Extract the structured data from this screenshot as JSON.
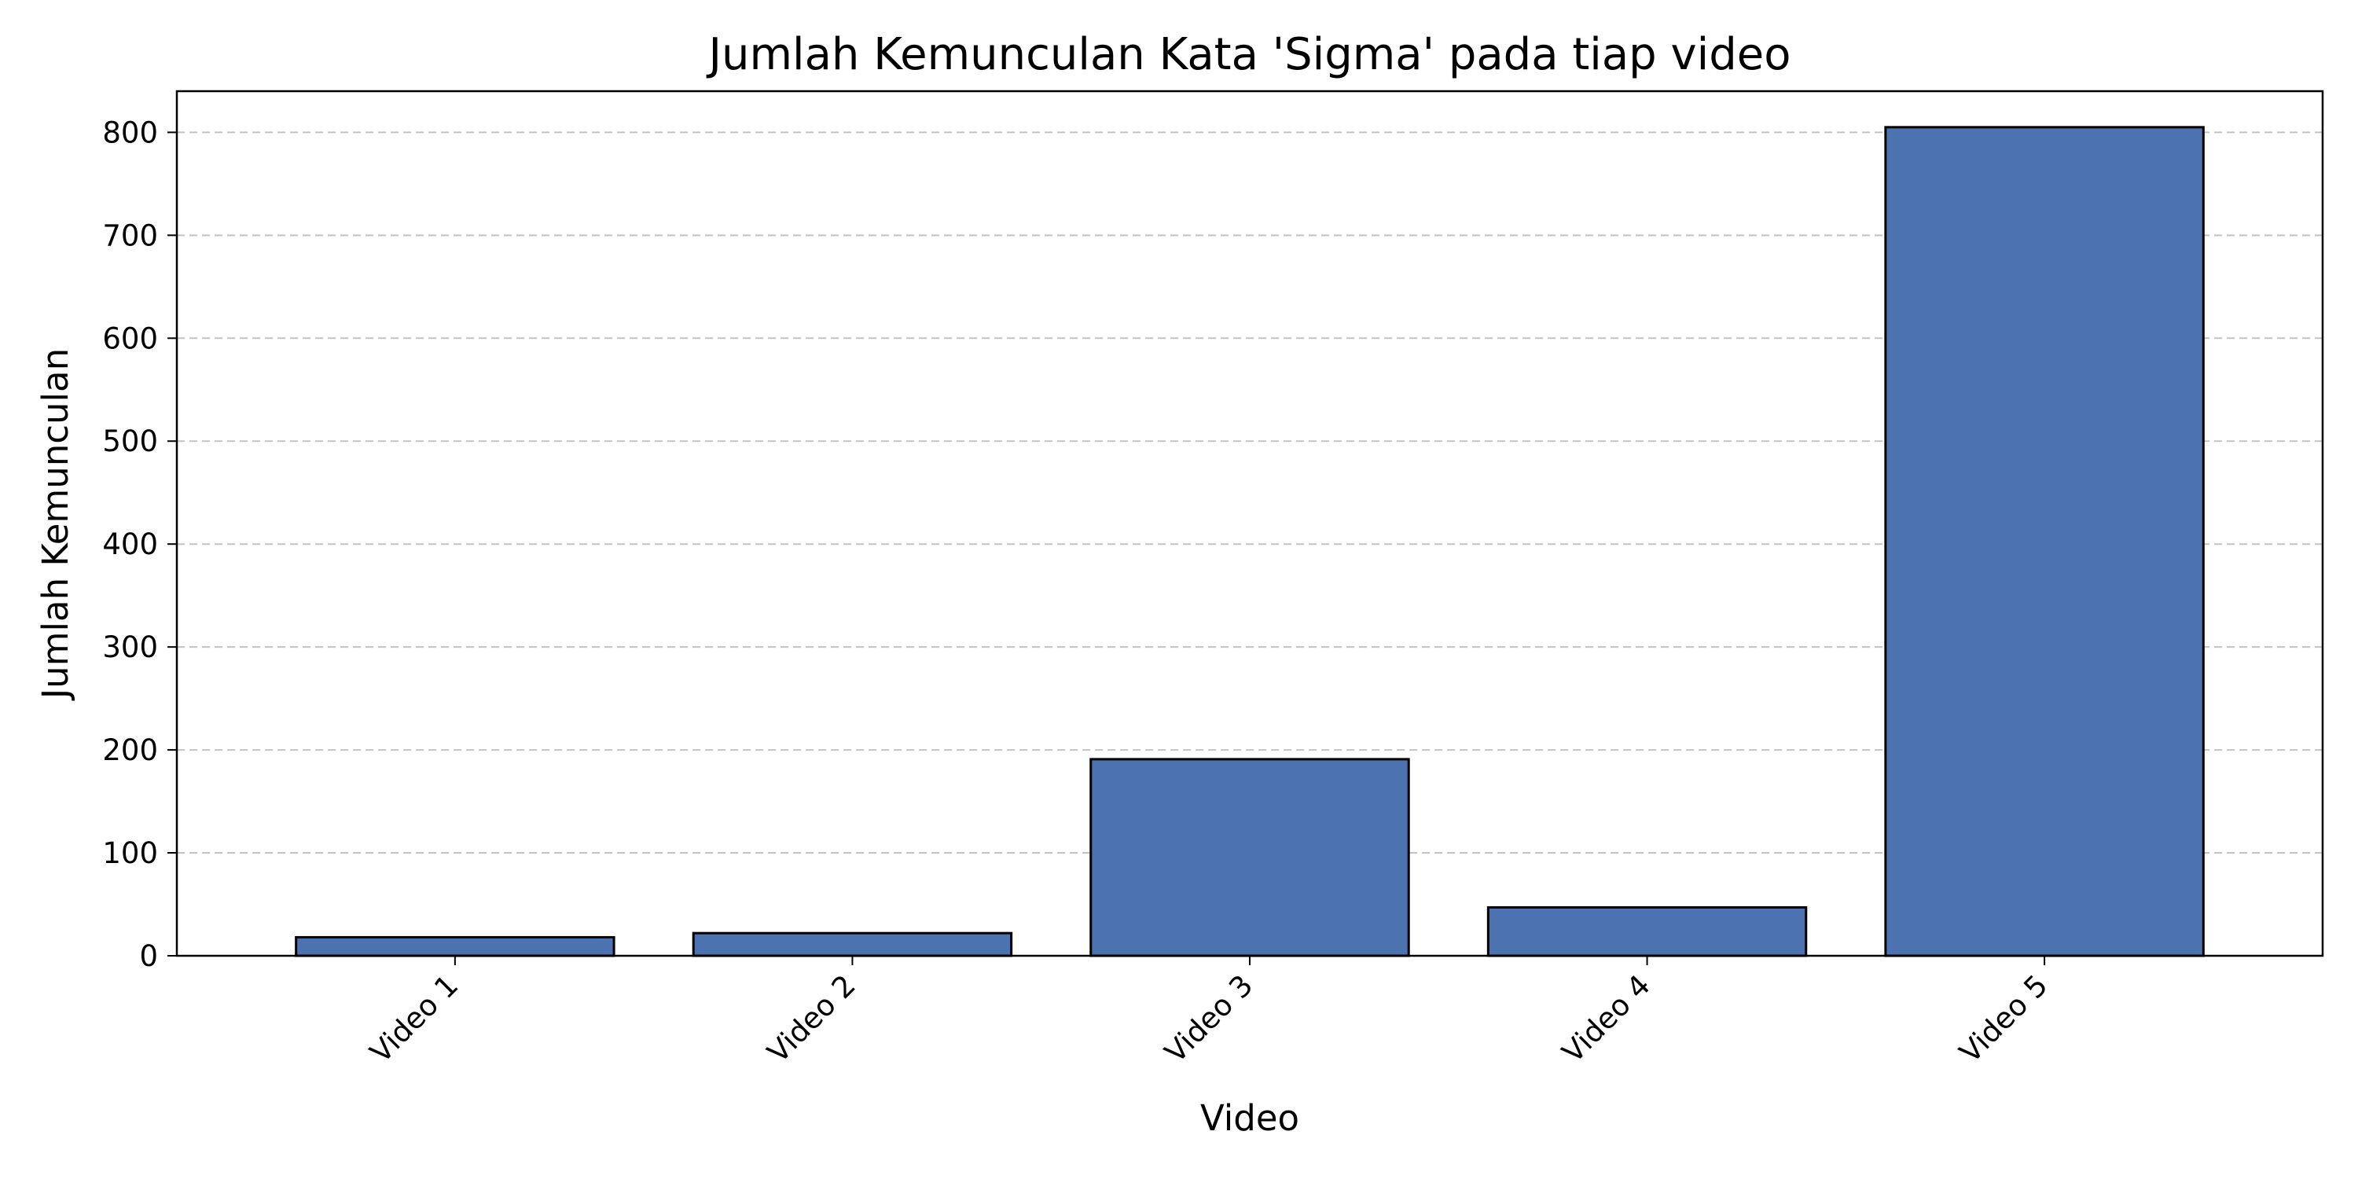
{
  "chart_data": {
    "type": "bar",
    "title": "Jumlah Kemunculan Kata 'Sigma' pada tiap video",
    "xlabel": "Video",
    "ylabel": "Jumlah Kemunculan",
    "categories": [
      "Video 1",
      "Video 2",
      "Video 3",
      "Video 4",
      "Video 5"
    ],
    "values": [
      18,
      22,
      191,
      47,
      805
    ],
    "ylim": [
      0,
      840
    ],
    "yticks": [
      0,
      100,
      200,
      300,
      400,
      500,
      600,
      700,
      800
    ],
    "grid": "y-dashed",
    "legend": "none",
    "colors": {
      "bar_fill": "#4c72b0",
      "bar_edge": "#000000",
      "grid": "#b0b0b0"
    }
  }
}
